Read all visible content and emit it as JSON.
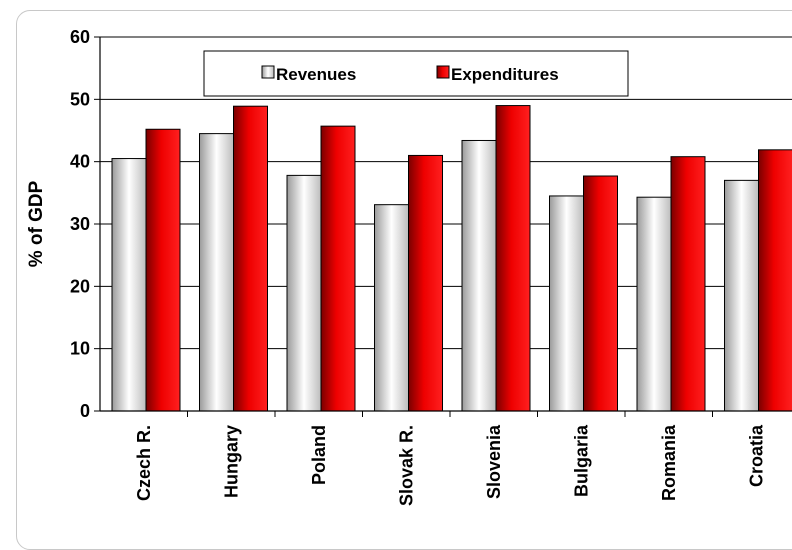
{
  "chart_data": {
    "type": "bar",
    "categories": [
      "Czech R.",
      "Hungary",
      "Poland",
      "Slovak R.",
      "Slovenia",
      "Bulgaria",
      "Romania",
      "Croatia"
    ],
    "series": [
      {
        "name": "Revenues",
        "values": [
          40.5,
          44.5,
          37.8,
          33.1,
          43.4,
          34.5,
          34.3,
          37.0
        ]
      },
      {
        "name": "Expenditures",
        "values": [
          45.2,
          48.9,
          45.7,
          41.0,
          49.0,
          37.7,
          40.8,
          41.9
        ]
      }
    ],
    "ylabel": "% of GDP",
    "ylim": [
      0,
      60
    ],
    "yticks": [
      0,
      10,
      20,
      30,
      40,
      50,
      60
    ],
    "grid": true,
    "legend": "top-center",
    "colors": {
      "Revenues": "#e6e6e6",
      "Expenditures": "#dd0000"
    }
  }
}
